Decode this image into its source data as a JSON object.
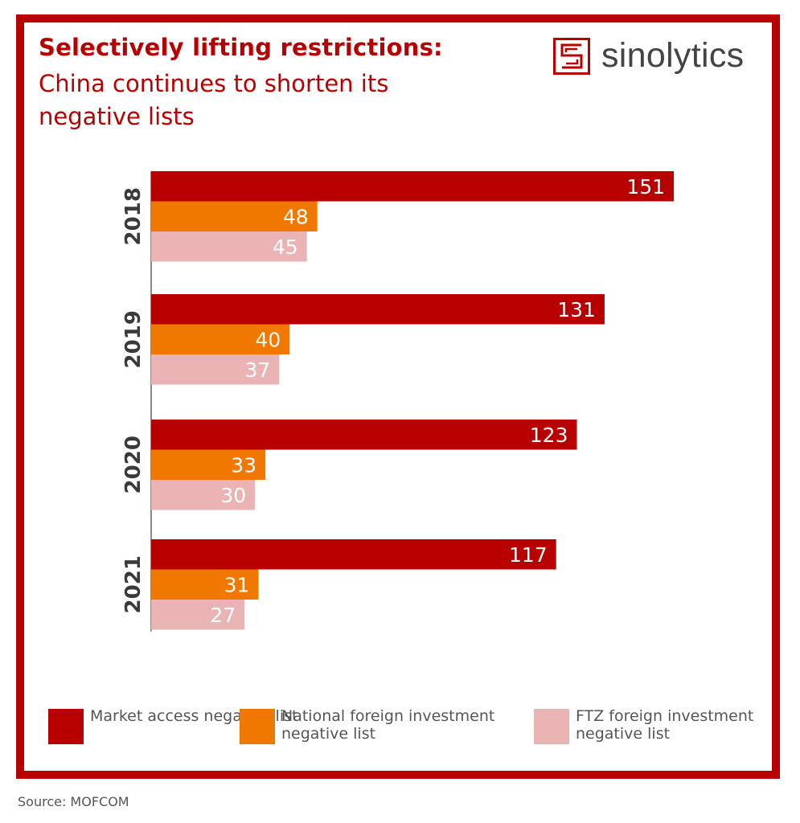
{
  "header": {
    "title": "Selectively lifting restrictions:",
    "subtitle": "China continues to shorten its negative lists"
  },
  "logo": {
    "text": "sinolytics",
    "icon": "sinolytics-logo-icon",
    "color": "#b80000"
  },
  "source": "Source: MOFCOM",
  "colors": {
    "frame": "#b80000",
    "market": "#b80000",
    "national": "#f07800",
    "ftz": "#ebb4b4"
  },
  "chart_data": {
    "type": "bar",
    "orientation": "horizontal",
    "categories": [
      "2018",
      "2019",
      "2020",
      "2021"
    ],
    "series": [
      {
        "name": "Market access negative list",
        "color": "#b80000",
        "values": [
          151,
          131,
          123,
          117
        ]
      },
      {
        "name": "National foreign investment negative list",
        "color": "#f07800",
        "values": [
          48,
          40,
          33,
          31
        ]
      },
      {
        "name": "FTZ foreign investment negative list",
        "color": "#ebb4b4",
        "values": [
          45,
          37,
          30,
          27
        ]
      }
    ],
    "legend_position": "bottom",
    "grid": false,
    "data_labels": true
  }
}
